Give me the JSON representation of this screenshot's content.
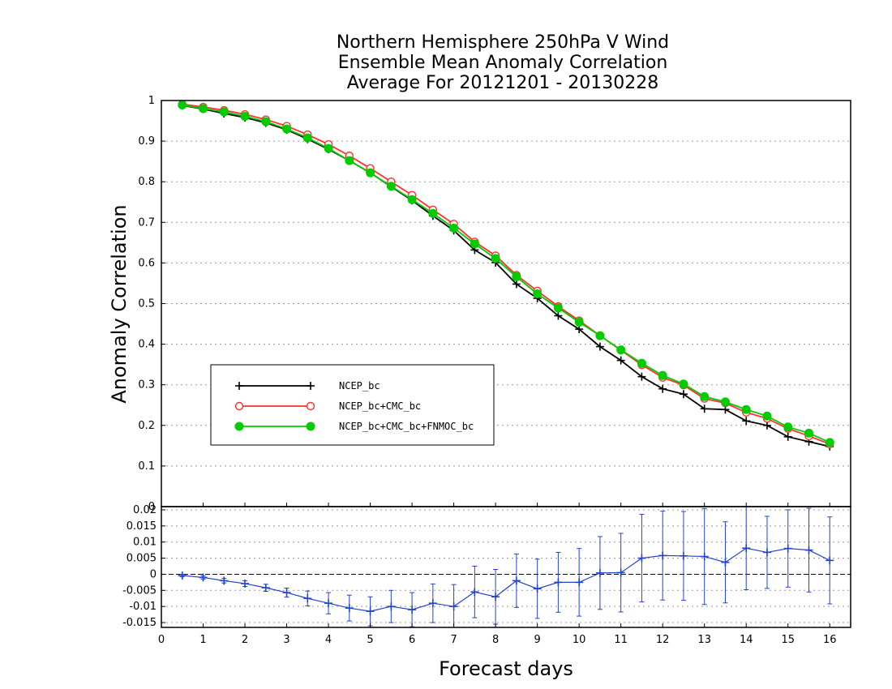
{
  "chart_data": [
    {
      "type": "line",
      "title": [
        "Northern Hemisphere 250hPa V Wind",
        "Ensemble Mean Anomaly Correlation",
        "Average For 20121201 - 20130228"
      ],
      "xlabel": "Forecast days",
      "ylabel": "Anomaly Correlation",
      "xlim": [
        0,
        16.5
      ],
      "ylim": [
        0,
        1
      ],
      "xticks": [
        "0",
        "1",
        "2",
        "3",
        "4",
        "5",
        "6",
        "7",
        "8",
        "9",
        "10",
        "11",
        "12",
        "13",
        "14",
        "15",
        "16"
      ],
      "yticks": [
        "0",
        "0.1",
        "0.2",
        "0.3",
        "0.4",
        "0.5",
        "0.6",
        "0.7",
        "0.8",
        "0.9",
        "1"
      ],
      "grid": true,
      "legend_position": "lower-left",
      "x": [
        0.5,
        1,
        1.5,
        2,
        2.5,
        3,
        3.5,
        4,
        4.5,
        5,
        5.5,
        6,
        6.5,
        7,
        7.5,
        8,
        8.5,
        9,
        9.5,
        10,
        10.5,
        11,
        11.5,
        12,
        12.5,
        13,
        13.5,
        14,
        14.5,
        15,
        15.5,
        16
      ],
      "series": [
        {
          "name": "NCEP_bc",
          "color": "#000000",
          "marker": "plus",
          "values": [
            0.988,
            0.979,
            0.968,
            0.958,
            0.945,
            0.928,
            0.905,
            0.88,
            0.852,
            0.822,
            0.788,
            0.754,
            0.716,
            0.68,
            0.632,
            0.601,
            0.548,
            0.513,
            0.47,
            0.437,
            0.394,
            0.36,
            0.32,
            0.29,
            0.277,
            0.241,
            0.239,
            0.211,
            0.2,
            0.172,
            0.16,
            0.148
          ]
        },
        {
          "name": "NCEP_bc+CMC_bc",
          "color": "#ff3030",
          "marker": "open-circle",
          "values": [
            0.991,
            0.984,
            0.976,
            0.966,
            0.953,
            0.937,
            0.916,
            0.892,
            0.864,
            0.833,
            0.8,
            0.767,
            0.731,
            0.696,
            0.652,
            0.618,
            0.57,
            0.531,
            0.493,
            0.458,
            0.421,
            0.385,
            0.349,
            0.318,
            0.299,
            0.266,
            0.255,
            0.232,
            0.217,
            0.192,
            0.174,
            0.154
          ]
        },
        {
          "name": "NCEP_bc+CMC_bc+FNMOC_bc",
          "color": "#00cc00",
          "marker": "filled-circle",
          "values": [
            0.989,
            0.98,
            0.972,
            0.961,
            0.948,
            0.93,
            0.908,
            0.882,
            0.852,
            0.822,
            0.789,
            0.756,
            0.722,
            0.686,
            0.647,
            0.611,
            0.566,
            0.524,
            0.489,
            0.454,
            0.421,
            0.386,
            0.353,
            0.323,
            0.302,
            0.271,
            0.258,
            0.239,
            0.223,
            0.196,
            0.181,
            0.158
          ]
        }
      ]
    },
    {
      "type": "line",
      "title": "",
      "xlabel": "Forecast days",
      "ylabel": "",
      "xlim": [
        0,
        16.5
      ],
      "ylim": [
        -0.0165,
        0.021
      ],
      "yticks": [
        "-0.015",
        "-0.01",
        "-0.005",
        "0",
        "0.005",
        "0.01",
        "0.015",
        "0.02"
      ],
      "reference_line": 0,
      "x": [
        0.5,
        1,
        1.5,
        2,
        2.5,
        3,
        3.5,
        4,
        4.5,
        5,
        5.5,
        6,
        6.5,
        7,
        7.5,
        8,
        8.5,
        9,
        9.5,
        10,
        10.5,
        11,
        11.5,
        12,
        12.5,
        13,
        13.5,
        14,
        14.5,
        15,
        15.5,
        16
      ],
      "series": [
        {
          "name": "",
          "color": "#2244cc",
          "marker": "plus",
          "values": [
            -0.0004,
            -0.001,
            -0.002,
            -0.0029,
            -0.0042,
            -0.0057,
            -0.0075,
            -0.009,
            -0.0105,
            -0.0115,
            -0.01,
            -0.011,
            -0.009,
            -0.01,
            -0.0055,
            -0.007,
            -0.002,
            -0.0045,
            -0.0025,
            -0.0025,
            0.0004,
            0.0005,
            0.005,
            0.0058,
            0.0057,
            0.0055,
            0.0037,
            0.0081,
            0.0068,
            0.008,
            0.0075,
            0.0043
          ],
          "error": [
            0.0004,
            0.0005,
            0.0007,
            0.0009,
            0.0011,
            0.0014,
            0.0023,
            0.0033,
            0.004,
            0.0045,
            0.005,
            0.0053,
            0.006,
            0.0068,
            0.008,
            0.0085,
            0.0083,
            0.0092,
            0.0093,
            0.0105,
            0.0113,
            0.0122,
            0.0136,
            0.0138,
            0.0138,
            0.0149,
            0.0126,
            0.0129,
            0.0112,
            0.012,
            0.013,
            0.0135
          ]
        }
      ]
    }
  ]
}
